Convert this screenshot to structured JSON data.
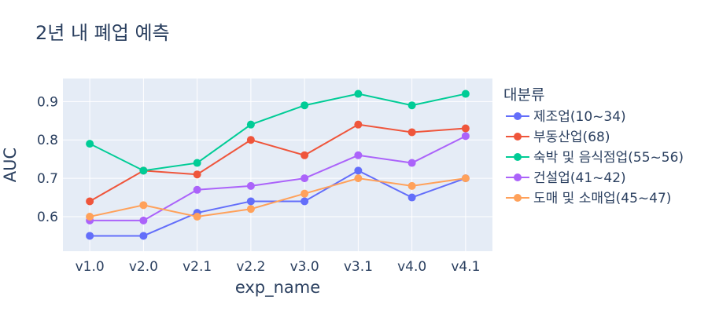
{
  "chart_data": {
    "type": "line",
    "title": "2년 내 폐업 예측",
    "xlabel": "exp_name",
    "ylabel": "AUC",
    "categories": [
      "v1.0",
      "v2.0",
      "v2.1",
      "v2.2",
      "v3.0",
      "v3.1",
      "v4.0",
      "v4.1"
    ],
    "y_ticks": [
      "0.6",
      "0.7",
      "0.8",
      "0.9"
    ],
    "ylim": [
      0.51,
      0.96
    ],
    "grid": true,
    "legend": {
      "title": "대분류",
      "placement": "right"
    },
    "series": [
      {
        "name": "제조업(10~34)",
        "color": "#636efa",
        "values": [
          0.55,
          0.55,
          0.61,
          0.64,
          0.64,
          0.72,
          0.65,
          0.7
        ]
      },
      {
        "name": "부동산업(68)",
        "color": "#ef553b",
        "values": [
          0.64,
          0.72,
          0.71,
          0.8,
          0.76,
          0.84,
          0.82,
          0.83
        ]
      },
      {
        "name": "숙박 및 음식점업(55~56)",
        "color": "#00cc96",
        "values": [
          0.79,
          0.72,
          0.74,
          0.84,
          0.89,
          0.92,
          0.89,
          0.92
        ]
      },
      {
        "name": "건설업(41~42)",
        "color": "#ab63fa",
        "values": [
          0.59,
          0.59,
          0.67,
          0.68,
          0.7,
          0.76,
          0.74,
          0.81
        ]
      },
      {
        "name": "도매 및 소매업(45~47)",
        "color": "#ffa15a",
        "values": [
          0.6,
          0.63,
          0.6,
          0.62,
          0.66,
          0.7,
          0.68,
          0.7
        ]
      }
    ]
  }
}
